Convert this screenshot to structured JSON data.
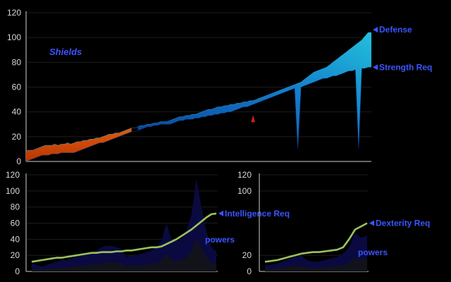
{
  "chart_data": [
    {
      "type": "area",
      "title": "Shields",
      "ylim": [
        0,
        120
      ],
      "yticks": [
        0,
        20,
        40,
        60,
        80,
        100,
        120
      ],
      "grid": true,
      "series": [
        {
          "name": "Defense",
          "color": "#22b8d8",
          "values": [
            9,
            9,
            9,
            10,
            11,
            12,
            13,
            13,
            13,
            14,
            13,
            14,
            14,
            15,
            14,
            15,
            16,
            16,
            17,
            17,
            18,
            18,
            19,
            19,
            20,
            21,
            22,
            22,
            23,
            23,
            24,
            25,
            26,
            27,
            27,
            28,
            29,
            29,
            30,
            30,
            31,
            31,
            32,
            32,
            32,
            33,
            34,
            35,
            36,
            36,
            37,
            37,
            38,
            38,
            39,
            40,
            41,
            42,
            42,
            43,
            44,
            44,
            45,
            45,
            46,
            46,
            47,
            47,
            48,
            48,
            49,
            49,
            50,
            51,
            52,
            53,
            54,
            55,
            56,
            57,
            58,
            59,
            60,
            61,
            62,
            63,
            64,
            66,
            68,
            70,
            72,
            73,
            74,
            75,
            76,
            78,
            80,
            82,
            84,
            86,
            88,
            90,
            92,
            94,
            96,
            98,
            101,
            104,
            104
          ]
        },
        {
          "name": "Strength Req",
          "color": "#0a3f9a",
          "values": [
            0,
            1,
            2,
            3,
            4,
            5,
            5,
            5,
            6,
            6,
            6,
            7,
            7,
            7,
            7,
            7,
            8,
            9,
            10,
            11,
            12,
            13,
            14,
            15,
            15,
            16,
            17,
            18,
            19,
            20,
            21,
            22,
            23,
            24,
            24,
            25,
            26,
            27,
            28,
            28,
            29,
            29,
            30,
            30,
            30,
            30,
            31,
            32,
            33,
            33,
            34,
            34,
            34,
            35,
            35,
            36,
            36,
            37,
            37,
            38,
            38,
            39,
            39,
            40,
            40,
            41,
            42,
            43,
            44,
            44,
            45,
            46,
            47,
            48,
            49,
            50,
            51,
            52,
            53,
            54,
            55,
            56,
            57,
            58,
            59,
            10,
            60,
            61,
            62,
            63,
            64,
            65,
            66,
            67,
            67,
            68,
            69,
            69,
            70,
            71,
            72,
            73,
            73,
            74,
            10,
            75,
            75,
            76,
            76
          ]
        }
      ]
    },
    {
      "type": "line",
      "ylim": [
        0,
        120
      ],
      "yticks": [
        0,
        20,
        40,
        60,
        80,
        100,
        120
      ],
      "grid": true,
      "overlay_label": "powers",
      "series": [
        {
          "name": "Intelligence Req",
          "color": "#9cc25e",
          "values": [
            12,
            13,
            14,
            15,
            16,
            17,
            17,
            18,
            19,
            20,
            21,
            22,
            23,
            23,
            24,
            24,
            24,
            25,
            25,
            26,
            26,
            27,
            28,
            29,
            30,
            30,
            31,
            34,
            37,
            40,
            44,
            48,
            52,
            57,
            62,
            67,
            71,
            72
          ]
        },
        {
          "name": "",
          "color": "#0a0a40",
          "values": [
            10,
            8,
            6,
            8,
            10,
            12,
            14,
            14,
            16,
            18,
            20,
            22,
            24,
            26,
            30,
            32,
            32,
            30,
            28,
            18,
            20,
            20,
            22,
            24,
            26,
            30,
            38,
            60,
            40,
            38,
            40,
            50,
            70,
            115,
            80,
            50,
            30,
            25
          ]
        }
      ]
    },
    {
      "type": "line",
      "ylim": [
        0,
        120
      ],
      "yticks": [
        0,
        20,
        100,
        120
      ],
      "grid": true,
      "overlay_label": "powers",
      "series": [
        {
          "name": "Dexterity Req",
          "color": "#9cc25e",
          "values": [
            12,
            13,
            14,
            16,
            18,
            20,
            22,
            23,
            24,
            24,
            25,
            26,
            27,
            30,
            40,
            52,
            56,
            60
          ]
        },
        {
          "name": "",
          "color": "#0a0a40",
          "values": [
            8,
            8,
            10,
            12,
            16,
            18,
            20,
            14,
            12,
            12,
            14,
            16,
            18,
            22,
            30,
            48,
            42,
            45
          ]
        }
      ]
    }
  ]
}
